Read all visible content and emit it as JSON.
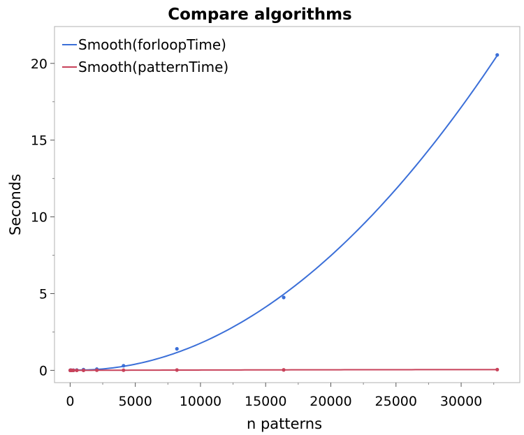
{
  "chart_data": {
    "type": "scatter",
    "title": "Compare algorithms",
    "xlabel": "n patterns",
    "ylabel": "Seconds",
    "xlim": [
      -1200,
      34500
    ],
    "ylim": [
      -0.8,
      22.4
    ],
    "x_ticks": [
      0,
      5000,
      10000,
      15000,
      20000,
      25000,
      30000
    ],
    "y_ticks": [
      0,
      5,
      10,
      15,
      20
    ],
    "grid": false,
    "legend_position": "top-left",
    "series": [
      {
        "name": "Smooth(forloopTime)",
        "color": "#3b6fd8",
        "x": [
          8,
          16,
          32,
          64,
          128,
          256,
          512,
          1024,
          2048,
          4096,
          8192,
          16384,
          32768
        ],
        "y": [
          0,
          0,
          0,
          0,
          0,
          0.01,
          0.02,
          0.05,
          0.08,
          0.3,
          1.4,
          4.75,
          20.55
        ]
      },
      {
        "name": "Smooth(patternTime)",
        "color": "#c8425a",
        "x": [
          8,
          16,
          32,
          64,
          128,
          256,
          512,
          1024,
          2048,
          4096,
          8192,
          16384,
          32768
        ],
        "y": [
          0,
          0,
          0,
          0,
          0,
          0,
          0,
          0,
          0.01,
          0.01,
          0.02,
          0.03,
          0.05
        ]
      }
    ]
  }
}
